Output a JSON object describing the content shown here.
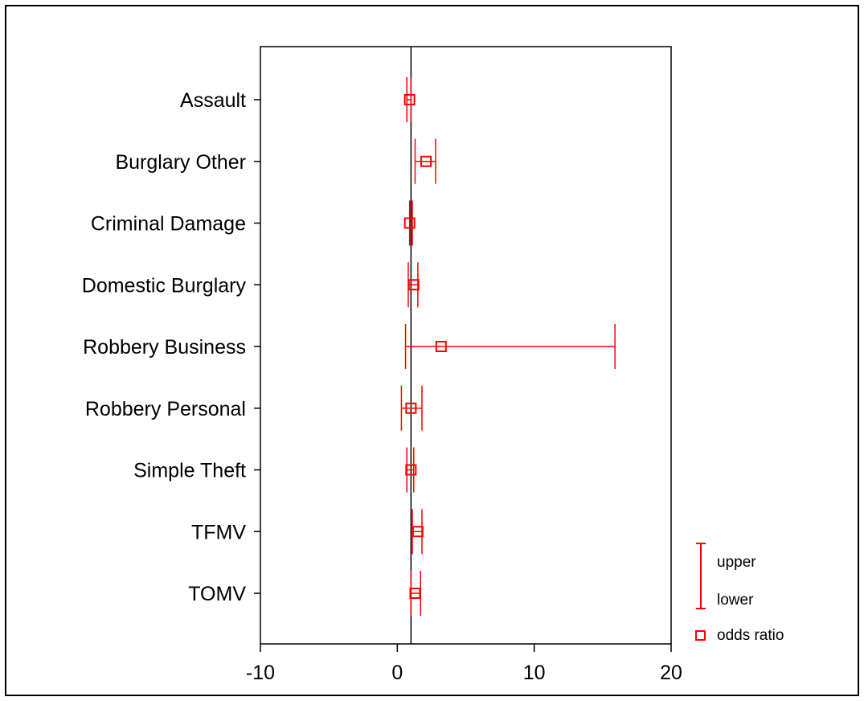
{
  "chart_data": {
    "type": "forest",
    "categories": [
      "Assault",
      "Burglary Other ",
      "Criminal Damage",
      "Domestic Burglary",
      "Robbery Business",
      "Robbery Personal",
      "Simple Theft",
      "TFMV",
      "TOMV"
    ],
    "series": [
      {
        "name": "odds ratio",
        "values": [
          0.9,
          2.1,
          0.9,
          1.2,
          3.2,
          1.0,
          1.0,
          1.5,
          1.3
        ]
      },
      {
        "name": "lower",
        "values": [
          0.7,
          1.3,
          0.9,
          0.8,
          0.6,
          0.3,
          0.7,
          1.1,
          1.0
        ]
      },
      {
        "name": "upper",
        "values": [
          1.0,
          2.8,
          1.1,
          1.5,
          15.9,
          1.8,
          1.2,
          1.8,
          1.7
        ]
      }
    ],
    "reference_line": 1,
    "xlim": [
      -10,
      20
    ],
    "xticks": [
      -10,
      0,
      10,
      20
    ],
    "xlabel": "",
    "ylabel": "",
    "title": "",
    "grid": false,
    "legend_position": "bottom-right",
    "colors": {
      "markers": "#ff0000",
      "axes": "#000000"
    }
  }
}
